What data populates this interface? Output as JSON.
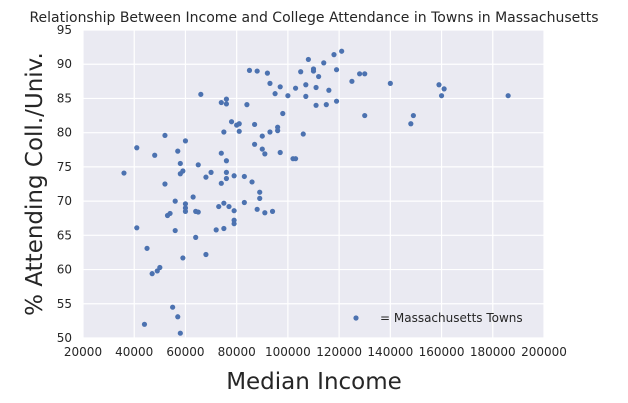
{
  "chart_data": {
    "type": "scatter",
    "title": "Relationship Between Income and College Attendance in Towns in Massachusetts",
    "xlabel": "Median Income",
    "ylabel": "% Attending Coll./Univ.",
    "xlim": [
      20000,
      200000
    ],
    "ylim": [
      50,
      95
    ],
    "xticks": [
      20000,
      40000,
      60000,
      80000,
      100000,
      120000,
      140000,
      160000,
      180000,
      200000
    ],
    "yticks": [
      50,
      55,
      60,
      65,
      70,
      75,
      80,
      85,
      90,
      95
    ],
    "grid": true,
    "legend": {
      "placement": "lower-right",
      "label": "=  Massachusetts Towns"
    },
    "colors": {
      "background": "#eaeaf2",
      "grid": "#ffffff",
      "marker": "#4c72b0"
    },
    "series": [
      {
        "name": "Massachusetts Towns",
        "points": [
          [
            36000,
            74.1
          ],
          [
            41000,
            77.8
          ],
          [
            41000,
            66.1
          ],
          [
            44000,
            52.0
          ],
          [
            45000,
            63.1
          ],
          [
            47000,
            59.4
          ],
          [
            48000,
            76.7
          ],
          [
            49000,
            59.8
          ],
          [
            50000,
            60.3
          ],
          [
            52000,
            79.6
          ],
          [
            52000,
            72.5
          ],
          [
            53000,
            67.9
          ],
          [
            54000,
            68.2
          ],
          [
            55000,
            54.5
          ],
          [
            56000,
            70.0
          ],
          [
            56000,
            65.7
          ],
          [
            57000,
            77.3
          ],
          [
            57000,
            53.1
          ],
          [
            58000,
            75.5
          ],
          [
            58000,
            74.0
          ],
          [
            58000,
            50.7
          ],
          [
            59000,
            61.7
          ],
          [
            59000,
            74.4
          ],
          [
            60000,
            78.8
          ],
          [
            60000,
            69.6
          ],
          [
            60000,
            69.0
          ],
          [
            60000,
            68.5
          ],
          [
            63000,
            70.6
          ],
          [
            64000,
            68.5
          ],
          [
            64000,
            64.7
          ],
          [
            65000,
            75.3
          ],
          [
            65000,
            68.4
          ],
          [
            66000,
            85.6
          ],
          [
            68000,
            73.5
          ],
          [
            68000,
            62.2
          ],
          [
            70000,
            74.2
          ],
          [
            72000,
            65.8
          ],
          [
            73000,
            69.2
          ],
          [
            74000,
            84.4
          ],
          [
            74000,
            77.0
          ],
          [
            74000,
            72.6
          ],
          [
            75000,
            80.1
          ],
          [
            75000,
            66.0
          ],
          [
            75000,
            69.7
          ],
          [
            76000,
            84.9
          ],
          [
            76000,
            84.2
          ],
          [
            76000,
            75.9
          ],
          [
            76000,
            74.2
          ],
          [
            76000,
            73.3
          ],
          [
            77000,
            69.2
          ],
          [
            78000,
            81.6
          ],
          [
            79000,
            73.7
          ],
          [
            79000,
            68.6
          ],
          [
            79000,
            67.2
          ],
          [
            79000,
            66.7
          ],
          [
            80000,
            81.1
          ],
          [
            81000,
            81.3
          ],
          [
            81000,
            80.2
          ],
          [
            83000,
            73.6
          ],
          [
            83000,
            69.8
          ],
          [
            84000,
            84.1
          ],
          [
            85000,
            89.1
          ],
          [
            86000,
            72.8
          ],
          [
            87000,
            78.3
          ],
          [
            87000,
            81.2
          ],
          [
            88000,
            89.0
          ],
          [
            88000,
            68.8
          ],
          [
            89000,
            70.4
          ],
          [
            89000,
            71.3
          ],
          [
            90000,
            79.5
          ],
          [
            90000,
            77.6
          ],
          [
            91000,
            76.9
          ],
          [
            91000,
            68.3
          ],
          [
            92000,
            88.7
          ],
          [
            93000,
            80.1
          ],
          [
            93000,
            87.2
          ],
          [
            94000,
            68.5
          ],
          [
            95000,
            85.7
          ],
          [
            96000,
            80.3
          ],
          [
            96000,
            80.8
          ],
          [
            97000,
            77.1
          ],
          [
            97000,
            86.7
          ],
          [
            98000,
            82.8
          ],
          [
            100000,
            85.4
          ],
          [
            102000,
            76.2
          ],
          [
            103000,
            86.5
          ],
          [
            103000,
            76.2
          ],
          [
            105000,
            88.9
          ],
          [
            106000,
            79.8
          ],
          [
            107000,
            87.0
          ],
          [
            107000,
            85.3
          ],
          [
            108000,
            90.7
          ],
          [
            110000,
            89.3
          ],
          [
            110000,
            89.0
          ],
          [
            111000,
            86.6
          ],
          [
            111000,
            84.0
          ],
          [
            112000,
            88.2
          ],
          [
            114000,
            90.2
          ],
          [
            115000,
            84.1
          ],
          [
            116000,
            86.2
          ],
          [
            118000,
            91.4
          ],
          [
            119000,
            84.6
          ],
          [
            119000,
            89.2
          ],
          [
            121000,
            91.9
          ],
          [
            125000,
            87.5
          ],
          [
            128000,
            88.6
          ],
          [
            130000,
            88.6
          ],
          [
            130000,
            82.5
          ],
          [
            140000,
            87.2
          ],
          [
            148000,
            81.3
          ],
          [
            149000,
            82.5
          ],
          [
            159000,
            87.0
          ],
          [
            160000,
            85.4
          ],
          [
            161000,
            86.4
          ],
          [
            186000,
            85.4
          ]
        ]
      }
    ]
  }
}
